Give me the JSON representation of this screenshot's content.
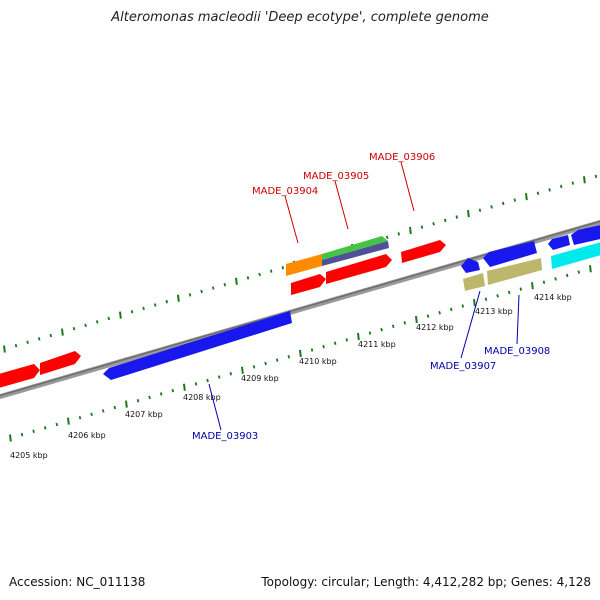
{
  "title": "Alteromonas macleodii 'Deep ecotype', complete genome",
  "footer": {
    "accession": "Accession: NC_011138",
    "summary": "Topology: circular; Length: 4,412,282 bp; Genes: 4,128"
  },
  "kbp_labels": [
    "4205 kbp",
    "4206 kbp",
    "4207 kbp",
    "4208 kbp",
    "4209 kbp",
    "4210 kbp",
    "4211 kbp",
    "4212 kbp",
    "4213 kbp",
    "4214 kbp"
  ],
  "gene_labels": {
    "made_03903": "MADE_03903",
    "made_03904": "MADE_03904",
    "made_03905": "MADE_03905",
    "made_03906": "MADE_03906",
    "made_03907": "MADE_03907",
    "made_03908": "MADE_03908"
  },
  "colors": {
    "plus_label": "#cc0000",
    "minus_label": "#0000aa",
    "red": "#ff0000",
    "blue": "#1010e8",
    "orange": "#ff8c00",
    "green": "#3cc43c",
    "slate": "#5050a0",
    "khaki": "#bdb76b",
    "cyan": "#00e5ee",
    "backbone": "#808080",
    "tick": "#1a7a1a"
  }
}
